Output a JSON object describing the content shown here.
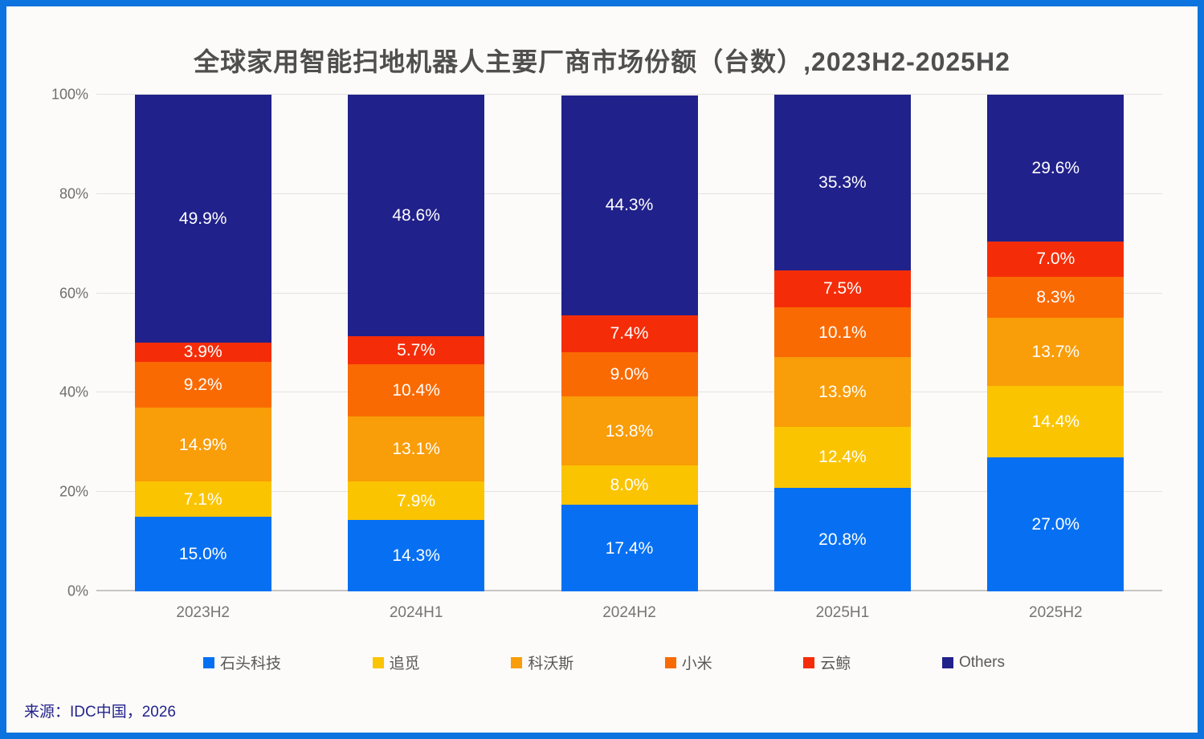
{
  "title": "全球家用智能扫地机器人主要厂商市场份额（台数）,2023H2-2025H2",
  "source": "来源：IDC中国，2026",
  "colors": {
    "frame_border": "#0D73DE",
    "background": "#FCFBF9",
    "gridline": "#E4E2E0",
    "axis_line": "#C6C5C3",
    "title_text": "#4F4F4F",
    "tick_text": "#6E6E6E",
    "legend_text": "#595959",
    "source_text": "#23238C",
    "data_label": "#FFFFFF"
  },
  "chart_data": {
    "type": "bar",
    "stacked": true,
    "title": "全球家用智能扫地机器人主要厂商市场份额（台数）,2023H2-2025H2",
    "xlabel": "",
    "ylabel": "",
    "ylim": [
      0,
      100
    ],
    "grid": true,
    "legend_position": "bottom",
    "y_ticks": [
      {
        "value": 0,
        "label": "0%"
      },
      {
        "value": 20,
        "label": "20%"
      },
      {
        "value": 40,
        "label": "40%"
      },
      {
        "value": 60,
        "label": "60%"
      },
      {
        "value": 80,
        "label": "80%"
      },
      {
        "value": 100,
        "label": "100%"
      }
    ],
    "categories": [
      "2023H2",
      "2024H1",
      "2024H2",
      "2025H1",
      "2025H2"
    ],
    "series": [
      {
        "name": "石头科技",
        "color": "#0770F2",
        "values": [
          15.0,
          14.3,
          17.4,
          20.8,
          27.0
        ]
      },
      {
        "name": "追觅",
        "color": "#FBC400",
        "values": [
          7.1,
          7.9,
          8.0,
          12.4,
          14.4
        ]
      },
      {
        "name": "科沃斯",
        "color": "#F99D08",
        "values": [
          14.9,
          13.1,
          13.8,
          13.9,
          13.7
        ]
      },
      {
        "name": "小米",
        "color": "#FA6A03",
        "values": [
          9.2,
          10.4,
          9.0,
          10.1,
          8.3
        ]
      },
      {
        "name": "云鲸",
        "color": "#F42D08",
        "values": [
          3.9,
          5.7,
          7.4,
          7.5,
          7.0
        ]
      },
      {
        "name": "Others",
        "color": "#21218B",
        "values": [
          49.9,
          48.6,
          44.3,
          35.3,
          29.6
        ]
      }
    ],
    "data_label_format": "one_decimal_percent"
  }
}
